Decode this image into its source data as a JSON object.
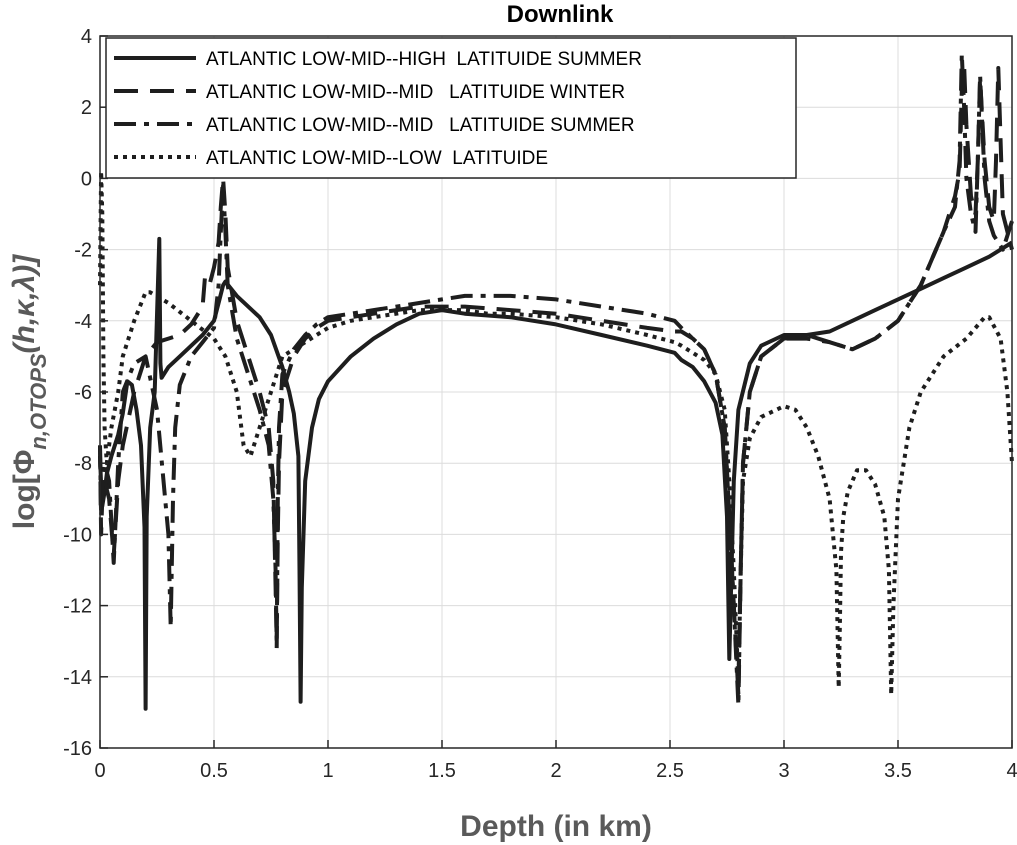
{
  "chart_data": {
    "type": "line",
    "title": "Downlink",
    "xlabel": "Depth (in km)",
    "ylabel": "log[Φ",
    "ylabel_sub": "n,OTOPS",
    "ylabel_tail": "(h,κ,λ)]",
    "xlim": [
      0,
      4
    ],
    "ylim": [
      -16,
      4
    ],
    "xticks": [
      0,
      0.5,
      1,
      1.5,
      2,
      2.5,
      3,
      3.5,
      4
    ],
    "yticks": [
      -16,
      -14,
      -12,
      -10,
      -8,
      -6,
      -4,
      -2,
      0,
      2,
      4
    ],
    "xtick_labels": [
      "0",
      "0.5",
      "1",
      "1.5",
      "2",
      "2.5",
      "3",
      "3.5",
      "4"
    ],
    "ytick_labels": [
      "-16",
      "-14",
      "-12",
      "-10",
      "-8",
      "-6",
      "-4",
      "-2",
      "0",
      "2",
      "4"
    ],
    "grid": true,
    "legend_position": "top-left",
    "series": [
      {
        "name": "ATLANTIC LOW-MID--HIGH  LATITUIDE SUMMER",
        "dash": "solid",
        "x": [
          0.0,
          0.005,
          0.01,
          0.02,
          0.03,
          0.05,
          0.08,
          0.1,
          0.12,
          0.14,
          0.16,
          0.18,
          0.195,
          0.2,
          0.205,
          0.22,
          0.24,
          0.26,
          0.265,
          0.27,
          0.3,
          0.35,
          0.4,
          0.45,
          0.5,
          0.52,
          0.54,
          0.55,
          0.6,
          0.65,
          0.7,
          0.75,
          0.8,
          0.83,
          0.85,
          0.87,
          0.875,
          0.88,
          0.885,
          0.9,
          0.93,
          0.96,
          1.0,
          1.1,
          1.2,
          1.3,
          1.4,
          1.5,
          1.6,
          1.8,
          2.0,
          2.2,
          2.4,
          2.52,
          2.55,
          2.6,
          2.65,
          2.7,
          2.73,
          2.75,
          2.76,
          2.78,
          2.8,
          2.85,
          2.9,
          3.0,
          3.1,
          3.2,
          3.3,
          3.4,
          3.5,
          3.6,
          3.7,
          3.8,
          3.9,
          4.0
        ],
        "values": [
          -7.8,
          -8.6,
          -9.2,
          -8.8,
          -8.3,
          -7.8,
          -7.2,
          -6.6,
          -5.7,
          -5.8,
          -6.5,
          -7.5,
          -9.8,
          -14.9,
          -9.5,
          -7.0,
          -6.0,
          -1.7,
          -5.2,
          -5.6,
          -5.3,
          -5.0,
          -4.7,
          -4.4,
          -4.0,
          -3.5,
          -3.0,
          -2.9,
          -3.3,
          -3.6,
          -3.9,
          -4.4,
          -5.3,
          -6.0,
          -6.6,
          -7.8,
          -11.0,
          -14.7,
          -11.5,
          -8.5,
          -7.0,
          -6.2,
          -5.7,
          -5.0,
          -4.5,
          -4.1,
          -3.8,
          -3.7,
          -3.8,
          -3.9,
          -4.1,
          -4.4,
          -4.7,
          -4.9,
          -5.1,
          -5.3,
          -5.7,
          -6.3,
          -7.2,
          -9.5,
          -13.5,
          -8.5,
          -6.5,
          -5.2,
          -4.7,
          -4.4,
          -4.4,
          -4.3,
          -4.0,
          -3.7,
          -3.4,
          -3.1,
          -2.8,
          -2.5,
          -2.2,
          -1.8
        ]
      },
      {
        "name": "ATLANTIC LOW-MID--MID   LATITUIDE WINTER",
        "dash": "dashed",
        "x": [
          0.0,
          0.005,
          0.01,
          0.02,
          0.04,
          0.06,
          0.08,
          0.1,
          0.15,
          0.2,
          0.25,
          0.3,
          0.35,
          0.4,
          0.45,
          0.46,
          0.48,
          0.5,
          0.52,
          0.53,
          0.54,
          0.55,
          0.56,
          0.6,
          0.65,
          0.7,
          0.74,
          0.76,
          0.77,
          0.775,
          0.78,
          0.785,
          0.8,
          0.85,
          0.9,
          0.95,
          1.0,
          1.1,
          1.2,
          1.3,
          1.4,
          1.5,
          1.6,
          1.8,
          2.0,
          2.2,
          2.4,
          2.52,
          2.55,
          2.6,
          2.65,
          2.7,
          2.74,
          2.76,
          2.78,
          2.8,
          2.81,
          2.82,
          2.85,
          2.9,
          3.0,
          3.1,
          3.2,
          3.3,
          3.4,
          3.5,
          3.6,
          3.7,
          3.75,
          3.77,
          3.78,
          3.79,
          3.8,
          3.82,
          3.84,
          3.85,
          3.86,
          3.88,
          3.9,
          3.92,
          3.93,
          3.94,
          3.96,
          4.0
        ],
        "values": [
          -7.5,
          -10.0,
          -9.0,
          -8.5,
          -9.0,
          -10.6,
          -8.5,
          -7.5,
          -6.0,
          -5.0,
          -4.6,
          -4.5,
          -4.4,
          -4.1,
          -3.6,
          -2.8,
          -3.0,
          -2.5,
          -1.8,
          -0.8,
          0.0,
          -1.0,
          -2.5,
          -4.0,
          -5.0,
          -6.0,
          -7.0,
          -8.5,
          -11.5,
          -13.0,
          -10.0,
          -8.0,
          -6.0,
          -5.0,
          -4.5,
          -4.2,
          -4.0,
          -3.9,
          -3.8,
          -3.7,
          -3.6,
          -3.6,
          -3.6,
          -3.7,
          -3.8,
          -4.0,
          -4.2,
          -4.3,
          -4.3,
          -4.5,
          -4.8,
          -5.5,
          -7.0,
          -9.5,
          -12.0,
          -14.5,
          -11.0,
          -8.0,
          -6.0,
          -5.0,
          -4.5,
          -4.5,
          -4.6,
          -4.8,
          -4.5,
          -4.0,
          -3.0,
          -1.5,
          -0.5,
          0.2,
          2.5,
          3.2,
          1.5,
          -0.5,
          -1.0,
          0.5,
          2.8,
          0.5,
          -0.8,
          -1.2,
          0.5,
          3.1,
          -1.0,
          -2.0
        ]
      },
      {
        "name": "ATLANTIC LOW-MID--MID   LATITUIDE SUMMER",
        "dash": "dashdot",
        "x": [
          0.0,
          0.005,
          0.01,
          0.02,
          0.04,
          0.06,
          0.08,
          0.1,
          0.15,
          0.2,
          0.25,
          0.3,
          0.31,
          0.32,
          0.33,
          0.35,
          0.4,
          0.45,
          0.5,
          0.52,
          0.53,
          0.54,
          0.55,
          0.56,
          0.6,
          0.65,
          0.7,
          0.74,
          0.76,
          0.77,
          0.775,
          0.78,
          0.785,
          0.8,
          0.85,
          0.9,
          0.95,
          1.0,
          1.1,
          1.2,
          1.3,
          1.4,
          1.5,
          1.6,
          1.7,
          1.8,
          2.0,
          2.2,
          2.4,
          2.52,
          2.55,
          2.6,
          2.65,
          2.7,
          2.74,
          2.76,
          2.78,
          2.8,
          2.81,
          2.82,
          2.85,
          2.9,
          3.0,
          3.1,
          3.2,
          3.3,
          3.4,
          3.5,
          3.6,
          3.7,
          3.75,
          3.77,
          3.78,
          3.79,
          3.8,
          3.82,
          3.84,
          3.85,
          3.86,
          3.88,
          3.9,
          3.92,
          3.94,
          3.96,
          4.0
        ],
        "values": [
          -7.5,
          -9.5,
          -8.5,
          -8.0,
          -8.5,
          -10.8,
          -8.0,
          -6.0,
          -5.2,
          -5.0,
          -6.5,
          -10.0,
          -12.6,
          -9.0,
          -7.0,
          -5.8,
          -5.0,
          -4.6,
          -4.2,
          -3.0,
          -1.5,
          -0.2,
          -1.5,
          -3.0,
          -4.5,
          -5.5,
          -6.5,
          -7.5,
          -9.0,
          -11.0,
          -13.2,
          -9.0,
          -7.0,
          -5.5,
          -4.8,
          -4.4,
          -4.1,
          -3.9,
          -3.8,
          -3.7,
          -3.6,
          -3.5,
          -3.4,
          -3.3,
          -3.3,
          -3.3,
          -3.4,
          -3.6,
          -3.8,
          -4.0,
          -4.2,
          -4.5,
          -4.8,
          -5.5,
          -7.0,
          -9.5,
          -12.0,
          -14.8,
          -11.0,
          -8.0,
          -6.0,
          -5.0,
          -4.5,
          -4.4,
          -4.6,
          -4.8,
          -4.5,
          -4.0,
          -3.0,
          -1.5,
          -0.8,
          0.5,
          3.5,
          2.0,
          0.0,
          -1.0,
          -1.5,
          0.5,
          2.9,
          0.0,
          -1.2,
          -1.6,
          -1.8,
          -2.0,
          -1.2
        ]
      },
      {
        "name": "ATLANTIC LOW-MID--LOW  LATITUIDE",
        "dash": "dotted",
        "x": [
          0.0,
          0.005,
          0.01,
          0.015,
          0.02,
          0.03,
          0.05,
          0.08,
          0.1,
          0.15,
          0.2,
          0.22,
          0.3,
          0.4,
          0.5,
          0.55,
          0.6,
          0.63,
          0.66,
          0.7,
          0.75,
          0.8,
          0.85,
          0.9,
          0.95,
          1.0,
          1.1,
          1.2,
          1.3,
          1.4,
          1.5,
          1.6,
          1.7,
          1.8,
          2.0,
          2.2,
          2.4,
          2.52,
          2.55,
          2.6,
          2.65,
          2.7,
          2.74,
          2.76,
          2.78,
          2.8,
          2.81,
          2.82,
          2.85,
          2.9,
          3.0,
          3.05,
          3.1,
          3.15,
          3.2,
          3.23,
          3.24,
          3.245,
          3.25,
          3.26,
          3.28,
          3.32,
          3.36,
          3.4,
          3.44,
          3.46,
          3.47,
          3.48,
          3.5,
          3.55,
          3.6,
          3.7,
          3.8,
          3.88,
          3.9,
          3.95,
          3.98,
          4.0
        ],
        "values": [
          -3.0,
          0.2,
          -1.0,
          -5.0,
          -7.0,
          -8.0,
          -7.0,
          -6.0,
          -5.0,
          -4.0,
          -3.2,
          -3.2,
          -3.5,
          -4.0,
          -4.5,
          -5.0,
          -6.0,
          -7.5,
          -7.8,
          -7.0,
          -6.0,
          -5.0,
          -4.8,
          -4.6,
          -4.4,
          -4.2,
          -4.0,
          -3.9,
          -3.8,
          -3.7,
          -3.7,
          -3.7,
          -3.8,
          -3.8,
          -3.9,
          -4.1,
          -4.4,
          -4.6,
          -4.7,
          -4.9,
          -5.1,
          -5.5,
          -6.5,
          -8.5,
          -11.0,
          -14.2,
          -11.0,
          -8.5,
          -7.3,
          -6.7,
          -6.4,
          -6.5,
          -7.0,
          -7.8,
          -9.0,
          -11.0,
          -14.3,
          -12.5,
          -10.5,
          -9.5,
          -8.8,
          -8.2,
          -8.2,
          -8.6,
          -9.5,
          -11.0,
          -14.5,
          -12.0,
          -9.0,
          -7.0,
          -6.0,
          -5.0,
          -4.5,
          -3.9,
          -3.9,
          -4.5,
          -6.0,
          -8.0
        ]
      }
    ]
  }
}
